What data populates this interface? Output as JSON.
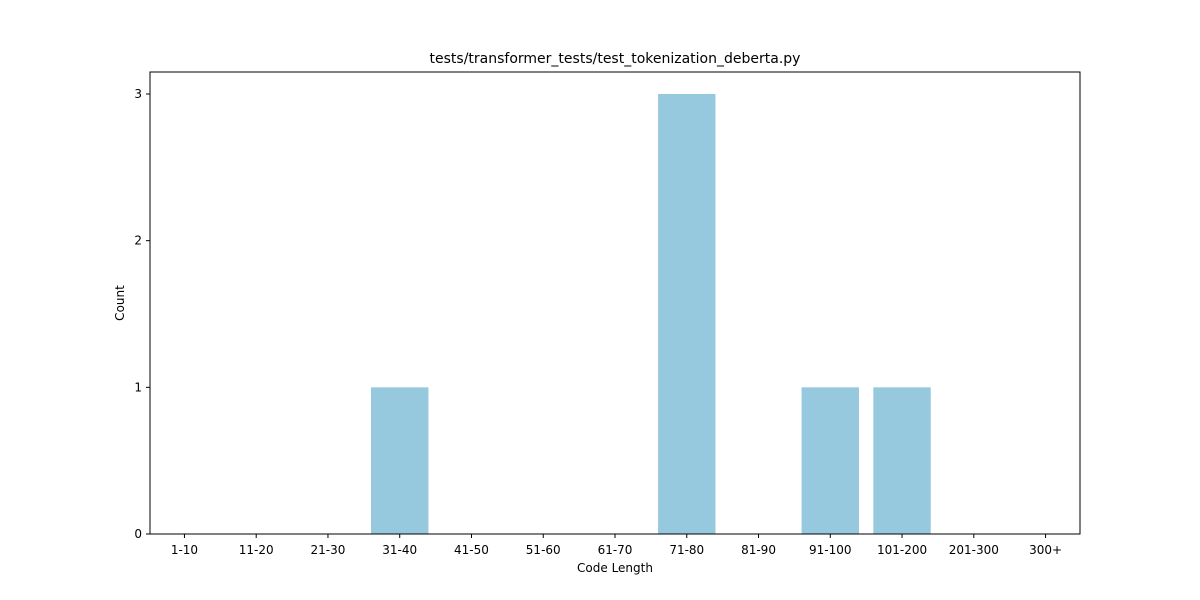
{
  "chart_data": {
    "type": "bar",
    "title": "tests/transformer_tests/test_tokenization_deberta.py",
    "xlabel": "Code Length",
    "ylabel": "Count",
    "categories": [
      "1-10",
      "11-20",
      "21-30",
      "31-40",
      "41-50",
      "51-60",
      "61-70",
      "71-80",
      "81-90",
      "91-100",
      "101-200",
      "201-300",
      "300+"
    ],
    "values": [
      0,
      0,
      0,
      1,
      0,
      0,
      0,
      3,
      0,
      1,
      1,
      0,
      0
    ],
    "ylim": [
      0,
      3.15
    ],
    "yticks": [
      0,
      1,
      2,
      3
    ],
    "bar_color": "#96c9de",
    "grid": false,
    "legend": "none"
  }
}
